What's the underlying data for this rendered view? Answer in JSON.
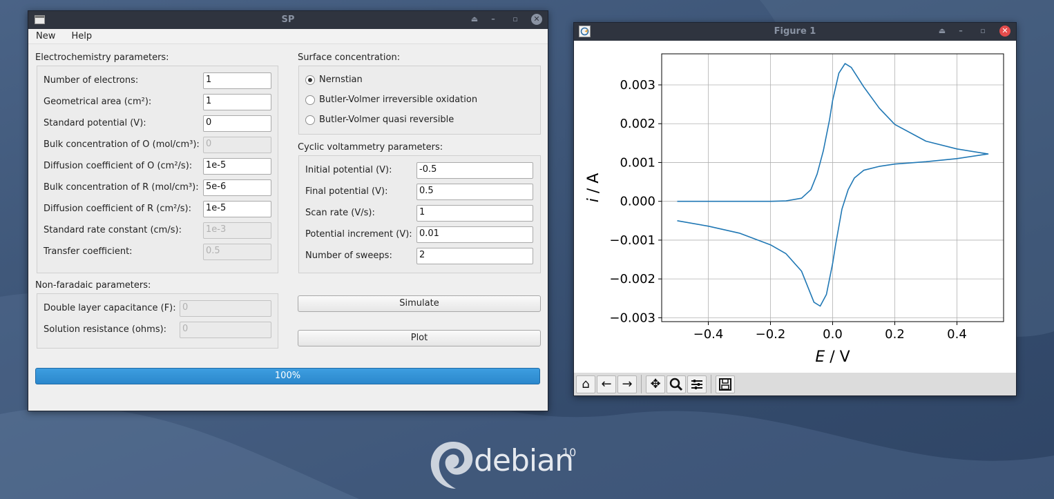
{
  "sp_window": {
    "title": "SP",
    "menu": [
      "New",
      "Help"
    ],
    "electro": {
      "heading": "Electrochemistry parameters:",
      "rows": [
        {
          "label": "Number of electrons:",
          "value": "1",
          "disabled": false
        },
        {
          "label": "Geometrical area (cm²):",
          "value": "1",
          "disabled": false
        },
        {
          "label": "Standard potential (V):",
          "value": "0",
          "disabled": false
        },
        {
          "label": "Bulk concentration of O (mol/cm³):",
          "value": "0",
          "disabled": true
        },
        {
          "label": "Diffusion coefficient of O (cm²/s):",
          "value": "1e-5",
          "disabled": false
        },
        {
          "label": "Bulk concentration of R (mol/cm³):",
          "value": "5e-6",
          "disabled": false
        },
        {
          "label": "Diffusion coefficient of R (cm²/s):",
          "value": "1e-5",
          "disabled": false
        },
        {
          "label": "Standard rate constant (cm/s):",
          "value": "1e-3",
          "disabled": true
        },
        {
          "label": "Transfer coefficient:",
          "value": "0.5",
          "disabled": true
        }
      ]
    },
    "nonfaradaic": {
      "heading": "Non-faradaic parameters:",
      "rows": [
        {
          "label": "Double layer capacitance (F):",
          "value": "0",
          "disabled": true
        },
        {
          "label": "Solution resistance (ohms):",
          "value": "0",
          "disabled": true
        }
      ]
    },
    "surface": {
      "heading": "Surface concentration:",
      "options": [
        {
          "label": "Nernstian",
          "checked": true
        },
        {
          "label": "Butler-Volmer irreversible oxidation",
          "checked": false
        },
        {
          "label": "Butler-Volmer quasi reversible",
          "checked": false
        }
      ]
    },
    "cv": {
      "heading": "Cyclic voltammetry parameters:",
      "rows": [
        {
          "label": "Initial potential (V):",
          "value": "-0.5"
        },
        {
          "label": "Final potential (V):",
          "value": "0.5"
        },
        {
          "label": "Scan rate (V/s):",
          "value": "1"
        },
        {
          "label": "Potential increment (V):",
          "value": "0.01"
        },
        {
          "label": "Number of sweeps:",
          "value": "2"
        }
      ]
    },
    "simulate_label": "Simulate",
    "plot_label": "Plot",
    "progress_text": "100%",
    "progress_value": 1.0
  },
  "figure_window": {
    "title": "Figure 1",
    "toolbar_icons": [
      "home-icon",
      "back-arrow-icon",
      "forward-arrow-icon",
      "pan-icon",
      "zoom-icon",
      "subplots-icon",
      "save-icon"
    ]
  },
  "chart_data": {
    "type": "line",
    "title": "",
    "xlabel_var": "E",
    "xlabel_unit": " / V",
    "ylabel_var": "i",
    "ylabel_unit": " / A",
    "xlim": [
      -0.55,
      0.55
    ],
    "ylim": [
      -0.0031,
      0.0038
    ],
    "xticks": [
      -0.4,
      -0.2,
      0.0,
      0.2,
      0.4
    ],
    "xtick_labels": [
      "−0.4",
      "−0.2",
      "0.0",
      "0.2",
      "0.4"
    ],
    "yticks": [
      -0.003,
      -0.002,
      -0.001,
      0.0,
      0.001,
      0.002,
      0.003
    ],
    "ytick_labels": [
      "−0.003",
      "−0.002",
      "−0.001",
      "0.000",
      "0.001",
      "0.002",
      "0.003"
    ],
    "grid": true,
    "color": "#1f77b4",
    "x": [
      -0.5,
      -0.4,
      -0.3,
      -0.2,
      -0.15,
      -0.1,
      -0.07,
      -0.05,
      -0.03,
      -0.01,
      0.0,
      0.02,
      0.04,
      0.06,
      0.08,
      0.1,
      0.15,
      0.2,
      0.3,
      0.4,
      0.5,
      0.4,
      0.3,
      0.2,
      0.15,
      0.1,
      0.07,
      0.05,
      0.03,
      0.01,
      0.0,
      -0.02,
      -0.04,
      -0.06,
      -0.08,
      -0.1,
      -0.15,
      -0.2,
      -0.3,
      -0.4,
      -0.5
    ],
    "y": [
      0.0,
      0.0,
      0.0,
      0.0,
      1e-05,
      8e-05,
      0.0003,
      0.0007,
      0.0013,
      0.0021,
      0.0026,
      0.0033,
      0.00355,
      0.00345,
      0.0032,
      0.00295,
      0.0024,
      0.00198,
      0.00155,
      0.00135,
      0.00122,
      0.0011,
      0.00102,
      0.00096,
      0.0009,
      0.0008,
      0.0006,
      0.0003,
      -0.0002,
      -0.0011,
      -0.0016,
      -0.0024,
      -0.0027,
      -0.0026,
      -0.0022,
      -0.0018,
      -0.00135,
      -0.00112,
      -0.00082,
      -0.00064,
      -0.0005
    ]
  },
  "desktop": {
    "logo_text": "debian",
    "logo_version": "10"
  }
}
